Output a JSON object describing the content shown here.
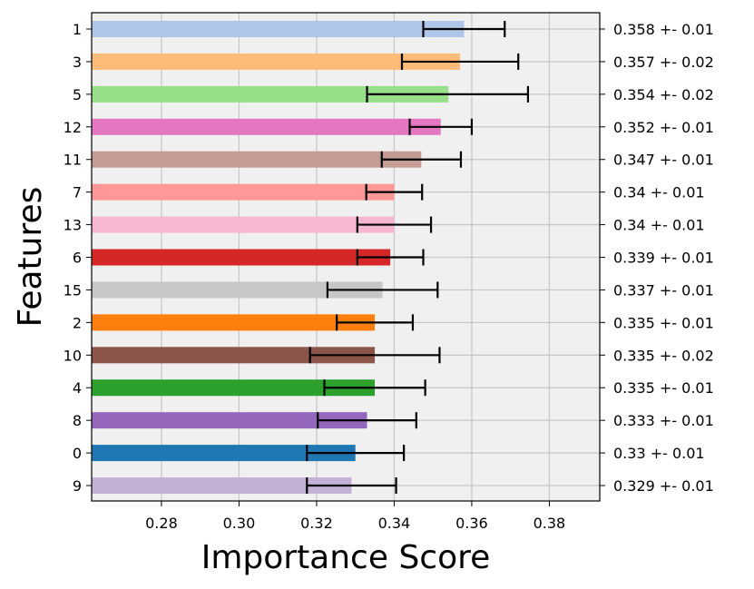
{
  "chart_data": {
    "type": "bar",
    "orientation": "horizontal",
    "xlabel": "Importance Score",
    "ylabel": "Features",
    "xlim": [
      0.262,
      0.393
    ],
    "xticks": [
      0.28,
      0.3,
      0.32,
      0.34,
      0.36,
      0.38
    ],
    "xtick_labels": [
      "0.28",
      "0.30",
      "0.32",
      "0.34",
      "0.36",
      "0.38"
    ],
    "grid": true,
    "background": "#f0f0f0",
    "bars": [
      {
        "feature": "1",
        "value": 0.358,
        "err_low": 0.3475,
        "err_high": 0.3685,
        "color": "#aec7e8",
        "label": "0.358 +- 0.01"
      },
      {
        "feature": "3",
        "value": 0.357,
        "err_low": 0.342,
        "err_high": 0.372,
        "color": "#ffbb78",
        "label": "0.357 +- 0.02"
      },
      {
        "feature": "5",
        "value": 0.354,
        "err_low": 0.333,
        "err_high": 0.3745,
        "color": "#98df8a",
        "label": "0.354 +- 0.02"
      },
      {
        "feature": "12",
        "value": 0.352,
        "err_low": 0.344,
        "err_high": 0.36,
        "color": "#e377c2",
        "label": "0.352 +- 0.01"
      },
      {
        "feature": "11",
        "value": 0.347,
        "err_low": 0.3368,
        "err_high": 0.3572,
        "color": "#c49c94",
        "label": "0.347 +- 0.01"
      },
      {
        "feature": "7",
        "value": 0.34,
        "err_low": 0.3328,
        "err_high": 0.3472,
        "color": "#ff9896",
        "label": "0.34 +- 0.01"
      },
      {
        "feature": "13",
        "value": 0.34,
        "err_low": 0.3305,
        "err_high": 0.3495,
        "color": "#f7b6d2",
        "label": "0.34 +- 0.01"
      },
      {
        "feature": "6",
        "value": 0.339,
        "err_low": 0.3305,
        "err_high": 0.3475,
        "color": "#d62728",
        "label": "0.339 +- 0.01"
      },
      {
        "feature": "15",
        "value": 0.337,
        "err_low": 0.3228,
        "err_high": 0.3512,
        "color": "#c7c7c7",
        "label": "0.337 +- 0.01"
      },
      {
        "feature": "2",
        "value": 0.335,
        "err_low": 0.3252,
        "err_high": 0.3448,
        "color": "#ff7f0e",
        "label": "0.335 +- 0.01"
      },
      {
        "feature": "10",
        "value": 0.335,
        "err_low": 0.3183,
        "err_high": 0.3517,
        "color": "#8c564b",
        "label": "0.335 +- 0.02"
      },
      {
        "feature": "4",
        "value": 0.335,
        "err_low": 0.322,
        "err_high": 0.348,
        "color": "#2ca02c",
        "label": "0.335 +- 0.01"
      },
      {
        "feature": "8",
        "value": 0.333,
        "err_low": 0.3203,
        "err_high": 0.3457,
        "color": "#9467bd",
        "label": "0.333 +- 0.01"
      },
      {
        "feature": "0",
        "value": 0.33,
        "err_low": 0.3175,
        "err_high": 0.3425,
        "color": "#1f77b4",
        "label": "0.33 +- 0.01"
      },
      {
        "feature": "9",
        "value": 0.329,
        "err_low": 0.3175,
        "err_high": 0.3405,
        "color": "#c5b0d5",
        "label": "0.329 +- 0.01"
      }
    ]
  }
}
